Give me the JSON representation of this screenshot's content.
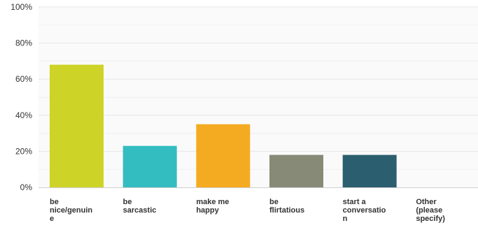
{
  "chart_data": {
    "type": "bar",
    "title": "",
    "xlabel": "",
    "ylabel": "",
    "ylim": [
      0,
      100
    ],
    "y_ticks": [
      "0%",
      "20%",
      "40%",
      "60%",
      "80%",
      "100%"
    ],
    "y_tick_values": [
      0,
      20,
      40,
      60,
      80,
      100
    ],
    "grid": true,
    "legend": "none",
    "categories": [
      [
        "be",
        "nice/genuin",
        "e"
      ],
      [
        "be",
        "sarcastic"
      ],
      [
        "make me",
        "happy"
      ],
      [
        "be",
        "flirtatious"
      ],
      [
        "start a",
        "conversatio",
        "n"
      ],
      [
        "Other",
        "(please",
        "specify)"
      ]
    ],
    "values": [
      68,
      23,
      35,
      18,
      18,
      0
    ],
    "colors": [
      "#cdd327",
      "#34bdc0",
      "#f5ab21",
      "#878a77",
      "#2b5f6f",
      "#cccccc"
    ]
  }
}
